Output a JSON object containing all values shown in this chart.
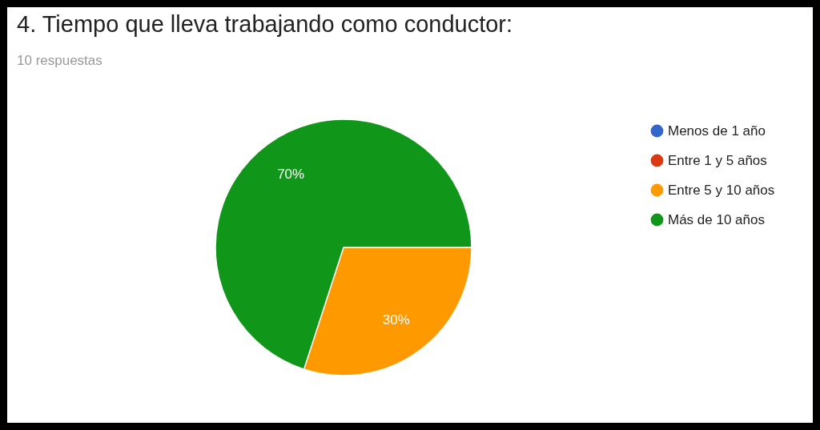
{
  "chart_data": {
    "type": "pie",
    "title": "4. Tiempo que lleva trabajando como conductor:",
    "subtitle": "10 respuestas",
    "categories": [
      "Menos de 1 año",
      "Entre 1 y 5 años",
      "Entre 5 y 10 años",
      "Más de 10 años"
    ],
    "values": [
      0,
      0,
      30,
      70
    ],
    "colors": [
      "#3366cc",
      "#dc3912",
      "#ff9900",
      "#109618"
    ],
    "value_labels": [
      null,
      null,
      "30%",
      "70%"
    ],
    "legend": "right"
  }
}
